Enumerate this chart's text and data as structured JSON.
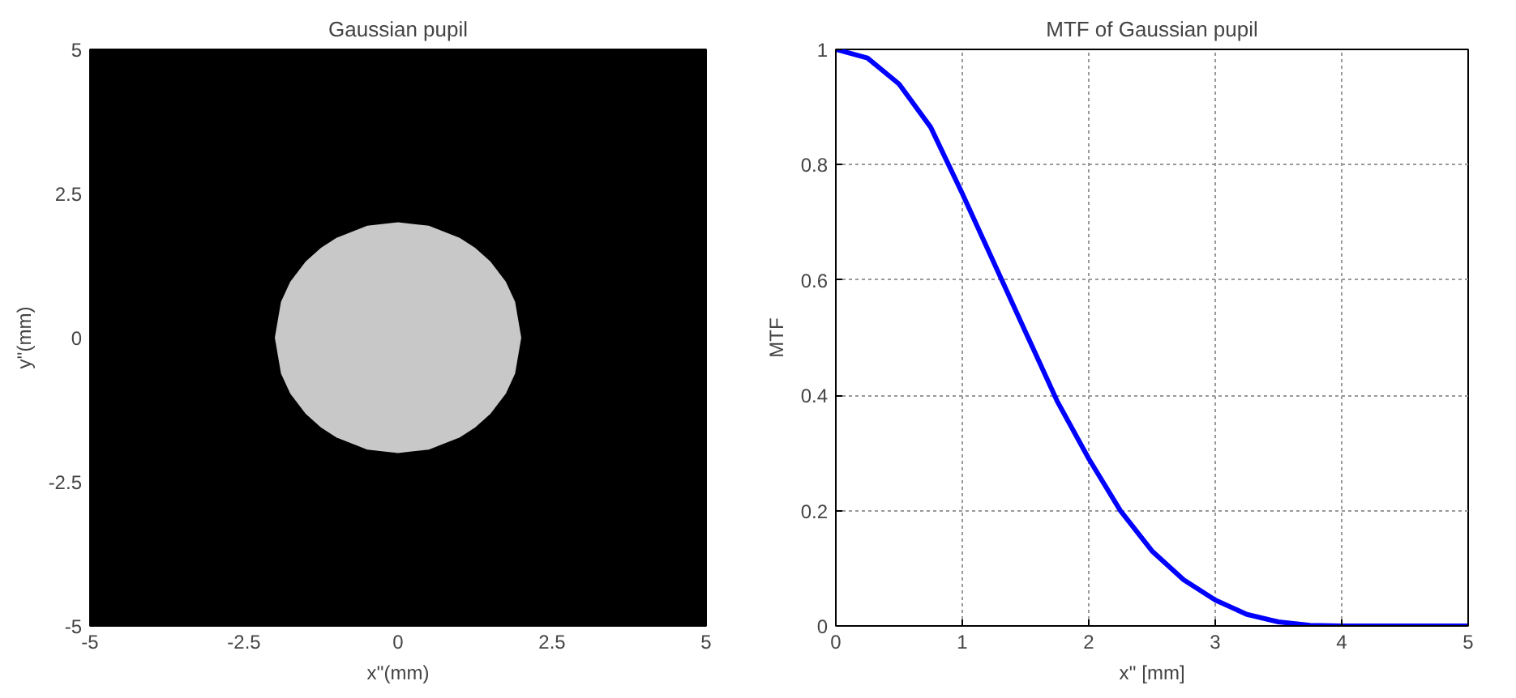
{
  "chart_data": [
    {
      "type": "area",
      "title": "Gaussian pupil",
      "xlabel": "x''(mm)",
      "ylabel": "y''(mm)",
      "xlim": [
        -5,
        5
      ],
      "ylim": [
        -5,
        5
      ],
      "xticks": [
        -5,
        -2.5,
        0,
        2.5,
        5
      ],
      "yticks": [
        -5,
        -2.5,
        0,
        2.5,
        5
      ],
      "x": [
        -2,
        -1.9,
        -1.75,
        -1.5,
        -1.25,
        -1,
        -0.5,
        0,
        0.5,
        1,
        1.25,
        1.5,
        1.75,
        1.9,
        2
      ],
      "series": [
        {
          "color": "#c8c8c8",
          "values": [
            0,
            0.62,
            0.97,
            1.32,
            1.56,
            1.73,
            1.94,
            2,
            1.94,
            1.73,
            1.56,
            1.32,
            0.97,
            0.62,
            0
          ]
        },
        {
          "color": "#c8c8c8",
          "values": [
            0,
            -0.62,
            -0.97,
            -1.32,
            -1.56,
            -1.73,
            -1.94,
            -2,
            -1.94,
            -1.73,
            -1.56,
            -1.32,
            -0.97,
            -0.62,
            0
          ]
        }
      ]
    },
    {
      "type": "line",
      "title": "MTF of Gaussian pupil",
      "xlabel": "x'' [mm]",
      "ylabel": "MTF",
      "xlim": [
        0,
        5
      ],
      "ylim": [
        0,
        1
      ],
      "xticks": [
        0,
        1,
        2,
        3,
        4,
        5
      ],
      "yticks": [
        0,
        0.2,
        0.4,
        0.6,
        0.8,
        1
      ],
      "grid": true,
      "line_style": "solid",
      "marker": "none",
      "x": [
        0,
        0.25,
        0.5,
        0.75,
        1,
        1.25,
        1.5,
        1.75,
        2,
        2.25,
        2.5,
        2.75,
        3,
        3.25,
        3.5,
        3.75,
        4,
        4.5,
        5
      ],
      "series": [
        {
          "color": "#0000ff",
          "values": [
            1,
            0.985,
            0.94,
            0.865,
            0.75,
            0.63,
            0.51,
            0.39,
            0.29,
            0.2,
            0.13,
            0.08,
            0.045,
            0.02,
            0.007,
            0.001,
            0,
            0,
            0
          ]
        }
      ]
    }
  ]
}
